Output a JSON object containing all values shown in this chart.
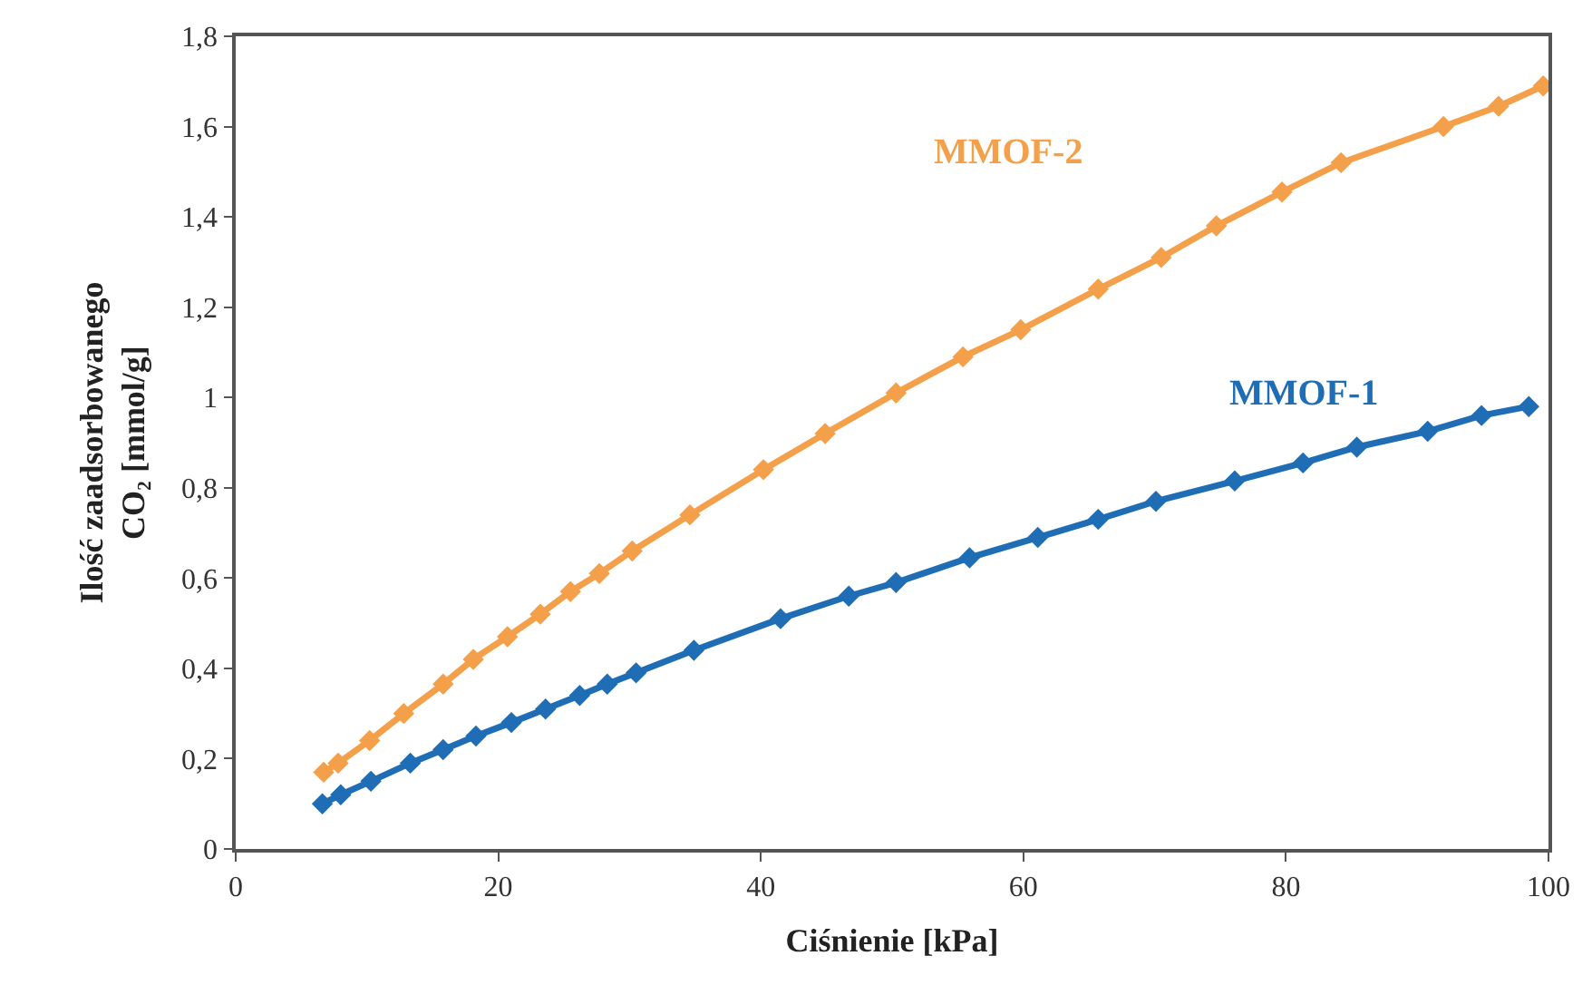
{
  "chart_data": {
    "type": "line",
    "xlabel": "Ciśnienie [kPa]",
    "ylabel": "Ilość zaadsorbowanego\nCO₂ [mmol/g]",
    "xlim": [
      0,
      100
    ],
    "xticks": [
      0,
      20,
      40,
      60,
      80,
      100
    ],
    "ylim": [
      0,
      1.8
    ],
    "yticks": [
      0,
      {
        "value": 0.2,
        "label": "0,2"
      },
      {
        "value": 0.4,
        "label": "0,4"
      },
      {
        "value": 0.6,
        "label": "0,6"
      },
      {
        "value": 0.8,
        "label": "0,8"
      },
      1,
      {
        "value": 1.2,
        "label": "1,2"
      },
      {
        "value": 1.4,
        "label": "1,4"
      },
      {
        "value": 1.6,
        "label": "1,6"
      },
      {
        "value": 1.8,
        "label": "1,8"
      }
    ],
    "legend": false,
    "marker": "diamond",
    "line_style": "solid",
    "series": [
      {
        "name": "MMOF-2",
        "color": "#f4a04a",
        "x": [
          6.7,
          7.8,
          10.2,
          12.8,
          15.8,
          18.1,
          20.7,
          23.2,
          25.5,
          27.7,
          30.2,
          34.6,
          40.2,
          44.9,
          50.3,
          55.4,
          59.8,
          65.7,
          70.5,
          74.7,
          79.7,
          84.2,
          92.0,
          96.2,
          99.6
        ],
        "values": [
          0.17,
          0.19,
          0.24,
          0.3,
          0.365,
          0.42,
          0.47,
          0.52,
          0.57,
          0.61,
          0.66,
          0.74,
          0.84,
          0.92,
          1.01,
          1.09,
          1.15,
          1.24,
          1.31,
          1.38,
          1.455,
          1.52,
          1.6,
          1.645,
          1.69
        ]
      },
      {
        "name": "MMOF-1",
        "color": "#1f6db5",
        "x": [
          6.6,
          8.0,
          10.3,
          13.3,
          15.8,
          18.3,
          21.0,
          23.6,
          26.2,
          28.3,
          30.5,
          34.9,
          41.5,
          46.7,
          50.3,
          55.9,
          61.1,
          65.7,
          70.1,
          76.1,
          81.3,
          85.4,
          90.8,
          94.9,
          98.5
        ],
        "values": [
          0.1,
          0.12,
          0.15,
          0.19,
          0.22,
          0.25,
          0.28,
          0.31,
          0.34,
          0.365,
          0.39,
          0.44,
          0.51,
          0.56,
          0.59,
          0.645,
          0.69,
          0.73,
          0.77,
          0.815,
          0.855,
          0.89,
          0.925,
          0.96,
          0.98
        ]
      }
    ]
  }
}
